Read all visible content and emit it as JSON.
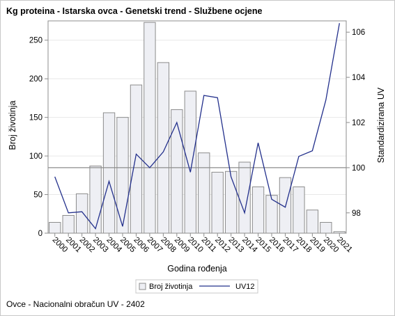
{
  "title": "Kg proteina - Istarska ovca - Genetski trend - Službene ocjene",
  "footer": "Ovce - Nacionalni obračun UV - 2402",
  "colors": {
    "bar_fill": "#eeeff4",
    "bar_stroke": "#8c8c8c",
    "line": "#23308c",
    "reference_line": "#8c8c8c",
    "grid": "#e8e8e8"
  },
  "chart_data": {
    "type": "bar",
    "xlabel": "Godina rođenja",
    "ylabel": "Broj životinja",
    "y2label": "Standardizirana UV",
    "categories": [
      "2000",
      "2001",
      "2002",
      "2003",
      "2004",
      "2005",
      "2006",
      "2007",
      "2008",
      "2009",
      "2010",
      "2011",
      "2012",
      "2013",
      "2014",
      "2015",
      "2016",
      "2017",
      "2018",
      "2019",
      "2020",
      "2021"
    ],
    "ylim": [
      0,
      275
    ],
    "yticks": [
      0,
      50,
      100,
      150,
      200,
      250
    ],
    "y2lim": [
      97.1,
      106.5
    ],
    "y2ticks": [
      98,
      100,
      102,
      104,
      106
    ],
    "reference_y2": 100,
    "grid": true,
    "legend_position": "bottom",
    "series": [
      {
        "name": "Broj životinja",
        "type": "bar",
        "axis": "left",
        "values": [
          14,
          23,
          51,
          87,
          156,
          150,
          192,
          273,
          221,
          160,
          184,
          104,
          79,
          80,
          92,
          60,
          49,
          72,
          60,
          30,
          14,
          2
        ]
      },
      {
        "name": "UV12",
        "type": "line",
        "axis": "right",
        "values": [
          99.6,
          98.0,
          98.05,
          97.3,
          99.4,
          97.4,
          100.6,
          100.0,
          100.7,
          102.0,
          99.8,
          103.2,
          103.1,
          99.6,
          98.0,
          101.1,
          98.6,
          98.25,
          100.5,
          100.75,
          103.0,
          106.4
        ]
      }
    ]
  }
}
